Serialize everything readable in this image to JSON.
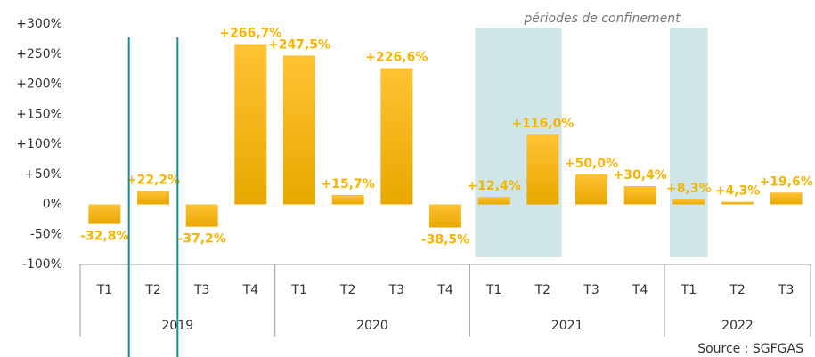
{
  "chart_data": {
    "type": "bar",
    "annotation": "périodes de confinement",
    "source": "Source : SGFGAS",
    "categories": [
      "T1",
      "T2",
      "T3",
      "T4",
      "T1",
      "T2",
      "T3",
      "T4",
      "T1",
      "T2",
      "T3",
      "T4",
      "T1",
      "T2",
      "T3"
    ],
    "group_labels": [
      "2019",
      "2020",
      "2021",
      "2022"
    ],
    "values": [
      -32.8,
      22.2,
      -37.2,
      266.7,
      247.5,
      15.7,
      226.6,
      -38.5,
      12.4,
      116.0,
      50.0,
      30.4,
      8.3,
      4.3,
      19.6
    ],
    "value_labels": [
      "-32,8%",
      "+22,2%",
      "-37,2%",
      "+266,7%",
      "+247,5%",
      "+15,7%",
      "+226,6%",
      "-38,5%",
      "+12,4%",
      "+116,0%",
      "+50,0%",
      "+30,4%",
      "+8,3%",
      "+4,3%",
      "+19,6%"
    ],
    "color": "#f5b400",
    "ylim": [
      -100,
      300
    ],
    "yticks": [
      {
        "value": -100,
        "label": "-100%"
      },
      {
        "value": -50,
        "label": "-50%"
      },
      {
        "value": 0,
        "label": "0%"
      },
      {
        "value": 50,
        "label": "+50%"
      },
      {
        "value": 100,
        "label": "+100%"
      },
      {
        "value": 150,
        "label": "+150%"
      },
      {
        "value": 200,
        "label": "+200%"
      },
      {
        "value": 250,
        "label": "+250%"
      },
      {
        "value": 300,
        "label": "+300%"
      }
    ],
    "grid": false
  }
}
